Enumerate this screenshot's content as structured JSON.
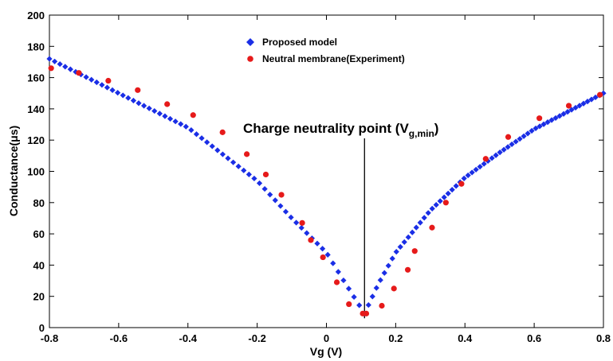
{
  "chart_data": {
    "type": "scatter",
    "xlabel": "Vg (V)",
    "ylabel": "Conductance(μs)",
    "xlim": [
      -0.8,
      0.8
    ],
    "ylim": [
      0,
      200
    ],
    "xticks": [
      "-0.8",
      "-0.6",
      "-0.4",
      "-0.2",
      "0",
      "0.2",
      "0.4",
      "0.6",
      "0.8"
    ],
    "yticks": [
      "0",
      "20",
      "40",
      "60",
      "80",
      "100",
      "120",
      "140",
      "160",
      "180",
      "200"
    ],
    "legend_position": "top-center",
    "annotation": {
      "text": "Charge neutrality point (V",
      "sub": "g,min",
      "close": ")",
      "x": 0.11
    },
    "series": [
      {
        "name": "Proposed model",
        "marker": "diamond",
        "color": "#1a2ee6",
        "curve": {
          "x_min": 0.11,
          "y_min": 9,
          "left": [
            [
              -0.8,
              172
            ],
            [
              -0.6,
              150
            ],
            [
              -0.4,
              128
            ],
            [
              -0.2,
              94
            ],
            [
              -0.1,
              70
            ],
            [
              0.0,
              48
            ],
            [
              0.05,
              30
            ],
            [
              0.11,
              9
            ]
          ],
          "right": [
            [
              0.11,
              9
            ],
            [
              0.15,
              28
            ],
            [
              0.2,
              48
            ],
            [
              0.3,
              75
            ],
            [
              0.4,
              96
            ],
            [
              0.5,
              112
            ],
            [
              0.6,
              127
            ],
            [
              0.8,
              150
            ]
          ],
          "points_per_side": 60
        }
      },
      {
        "name": "Neutral membrane(Experiment)",
        "marker": "circle",
        "color": "#e61a1a",
        "points": [
          [
            -0.795,
            166
          ],
          [
            -0.715,
            163
          ],
          [
            -0.63,
            158
          ],
          [
            -0.545,
            152
          ],
          [
            -0.46,
            143
          ],
          [
            -0.385,
            136
          ],
          [
            -0.3,
            125
          ],
          [
            -0.23,
            111
          ],
          [
            -0.175,
            98
          ],
          [
            -0.13,
            85
          ],
          [
            -0.07,
            67
          ],
          [
            -0.045,
            56
          ],
          [
            -0.01,
            45
          ],
          [
            0.03,
            29
          ],
          [
            0.065,
            15
          ],
          [
            0.105,
            9
          ],
          [
            0.115,
            9
          ],
          [
            0.16,
            14
          ],
          [
            0.195,
            25
          ],
          [
            0.235,
            37
          ],
          [
            0.255,
            49
          ],
          [
            0.305,
            64
          ],
          [
            0.345,
            80
          ],
          [
            0.39,
            92
          ],
          [
            0.46,
            108
          ],
          [
            0.525,
            122
          ],
          [
            0.615,
            134
          ],
          [
            0.7,
            142
          ],
          [
            0.79,
            149
          ]
        ]
      }
    ]
  }
}
